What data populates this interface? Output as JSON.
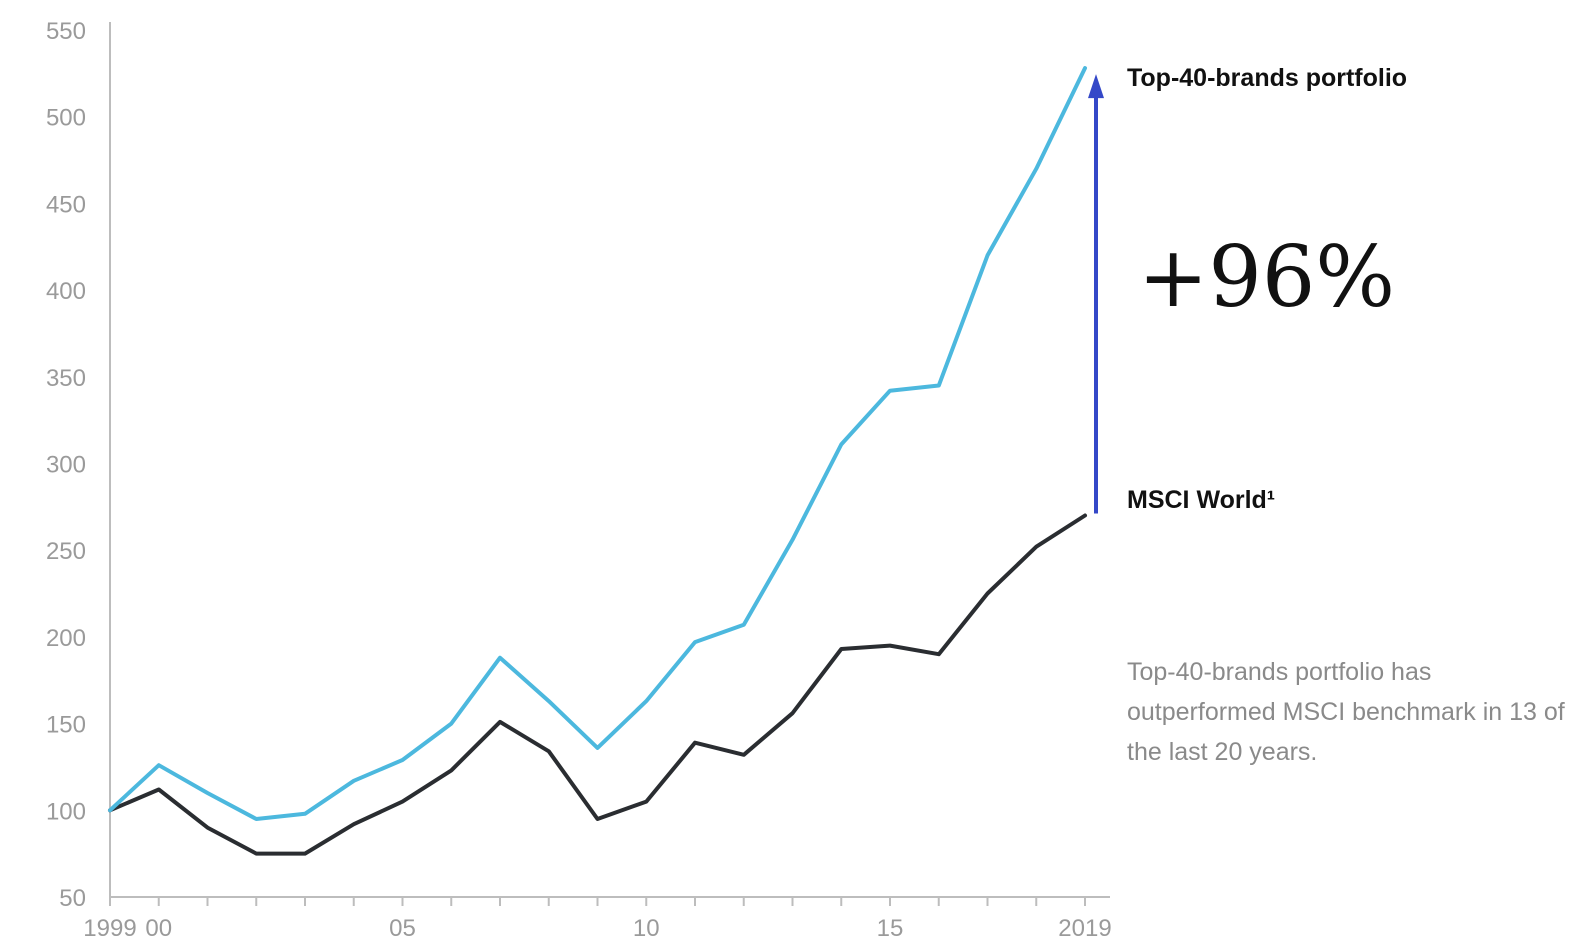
{
  "colors": {
    "top40": "#4cb8de",
    "msci": "#2a2d31",
    "arrow": "#3448c8",
    "axis": "#bdbdbd",
    "tick_text": "#9a9a9a"
  },
  "chart_data": {
    "type": "line",
    "x": [
      1999,
      2000,
      2001,
      2002,
      2003,
      2004,
      2005,
      2006,
      2007,
      2008,
      2009,
      2010,
      2011,
      2012,
      2013,
      2014,
      2015,
      2016,
      2017,
      2018,
      2019
    ],
    "series": [
      {
        "name": "Top-40-brands portfolio",
        "color": "#4cb8de",
        "values": [
          100,
          126,
          110,
          95,
          98,
          117,
          129,
          150,
          188,
          163,
          136,
          163,
          197,
          207,
          256,
          311,
          342,
          345,
          420,
          470,
          528
        ]
      },
      {
        "name": "MSCI World¹",
        "color": "#2a2d31",
        "values": [
          100,
          112,
          90,
          75,
          75,
          92,
          105,
          123,
          151,
          134,
          95,
          105,
          139,
          132,
          156,
          193,
          195,
          190,
          225,
          252,
          270
        ]
      }
    ],
    "xlim": [
      1999,
      2019
    ],
    "ylim": [
      50,
      550
    ],
    "y_ticks": [
      50,
      100,
      150,
      200,
      250,
      300,
      350,
      400,
      450,
      500,
      550
    ],
    "x_ticks": [
      {
        "value": 1999,
        "label": "1999"
      },
      {
        "value": 2000,
        "label": "00"
      },
      {
        "value": 2005,
        "label": "05"
      },
      {
        "value": 2010,
        "label": "10"
      },
      {
        "value": 2015,
        "label": "15"
      },
      {
        "value": 2019,
        "label": "2019"
      }
    ],
    "x_minor_ticks": [
      2001,
      2002,
      2003,
      2004,
      2006,
      2007,
      2008,
      2009,
      2011,
      2012,
      2013,
      2014,
      2016,
      2017,
      2018
    ],
    "grid": false,
    "legend": "right-end labels",
    "title": "",
    "xlabel": "",
    "ylabel": "",
    "annotations": {
      "difference": "+96%",
      "note": "Top-40-brands portfolio has outperformed MSCI benchmark in 13 of the last 20 years."
    }
  }
}
